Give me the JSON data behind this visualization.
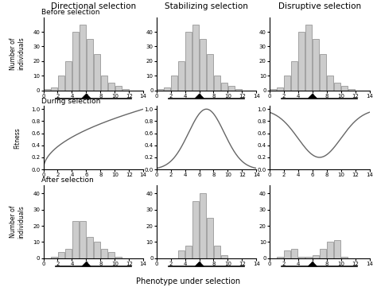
{
  "col_titles": [
    "Directional selection",
    "Stabilizing selection",
    "Disruptive selection"
  ],
  "row_labels": [
    "Before selection",
    "During selection",
    "After selection"
  ],
  "xlabel": "Phenotype under selection",
  "ylabel_hist": "Number of\nindividuals",
  "ylabel_fit": "Fitness",
  "before_heights": [
    1,
    2,
    10,
    20,
    40,
    45,
    35,
    25,
    10,
    5,
    3,
    1,
    0
  ],
  "after_dir_heights": [
    0,
    1,
    4,
    6,
    23,
    23,
    13,
    10,
    6,
    4,
    1,
    0,
    0
  ],
  "after_stab_heights": [
    0,
    0,
    0,
    5,
    8,
    35,
    40,
    25,
    8,
    2,
    0,
    0,
    0
  ],
  "after_disrupt_heights": [
    0,
    1,
    5,
    6,
    1,
    1,
    2,
    6,
    10,
    11,
    1,
    0,
    0
  ],
  "hist_color": "#cccccc",
  "hist_edgecolor": "#888888",
  "line_color": "#666666",
  "bar_linewidth": 0.5,
  "xlim": [
    0,
    14
  ],
  "ylim_hist": [
    0,
    50
  ],
  "ylim_fit": [
    0,
    1.05
  ],
  "xticks": [
    0,
    2,
    4,
    6,
    8,
    10,
    12,
    14
  ],
  "yticks_hist": [
    0,
    10,
    20,
    30,
    40
  ],
  "yticks_fit": [
    0,
    0.2,
    0.4,
    0.6,
    0.8,
    1
  ]
}
